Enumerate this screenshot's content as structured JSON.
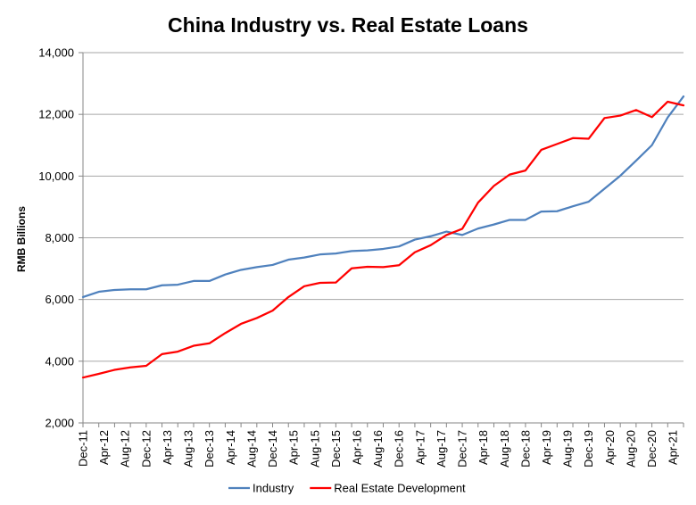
{
  "chart_data": {
    "type": "line",
    "title": "China Industry vs. Real Estate Loans",
    "xlabel": "",
    "ylabel": "RMB Billions",
    "ylim": [
      2000,
      14000
    ],
    "yticks": [
      "2,000",
      "4,000",
      "6,000",
      "8,000",
      "10,000",
      "12,000",
      "14,000"
    ],
    "grid": "horizontal",
    "legend_position": "bottom",
    "x": [
      "Dec-11",
      "Mar-12",
      "Jun-12",
      "Sep-12",
      "Dec-12",
      "Mar-13",
      "Jun-13",
      "Sep-13",
      "Dec-13",
      "Mar-14",
      "Jun-14",
      "Sep-14",
      "Dec-14",
      "Mar-15",
      "Jun-15",
      "Sep-15",
      "Dec-15",
      "Mar-16",
      "Jun-16",
      "Sep-16",
      "Dec-16",
      "Mar-17",
      "Jun-17",
      "Sep-17",
      "Dec-17",
      "Mar-18",
      "Jun-18",
      "Sep-18",
      "Dec-18",
      "Mar-19",
      "Jun-19",
      "Sep-19",
      "Dec-19",
      "Mar-20",
      "Jun-20",
      "Sep-20",
      "Dec-20",
      "Mar-21",
      "Jun-21"
    ],
    "x_tick_labels": [
      "Dec-11",
      "Apr-12",
      "Aug-12",
      "Dec-12",
      "Apr-13",
      "Aug-13",
      "Dec-13",
      "Apr-14",
      "Aug-14",
      "Dec-14",
      "Apr-15",
      "Aug-15",
      "Dec-15",
      "Apr-16",
      "Aug-16",
      "Dec-16",
      "Apr-17",
      "Aug-17",
      "Dec-17",
      "Apr-18",
      "Aug-18",
      "Dec-18",
      "Apr-19",
      "Aug-19",
      "Dec-19",
      "Apr-20",
      "Aug-20",
      "Dec-20",
      "Apr-21"
    ],
    "series": [
      {
        "name": "Industry",
        "color": "#4f81bd",
        "values": [
          6080,
          6250,
          6310,
          6330,
          6330,
          6460,
          6480,
          6600,
          6600,
          6810,
          6960,
          7050,
          7120,
          7290,
          7360,
          7460,
          7490,
          7570,
          7590,
          7640,
          7720,
          7940,
          8050,
          8200,
          8090,
          8300,
          8430,
          8580,
          8580,
          8850,
          8860,
          9020,
          9170,
          9590,
          10010,
          10500,
          11000,
          11900,
          12580
        ]
      },
      {
        "name": "Real Estate Development",
        "color": "#ff0000",
        "values": [
          3470,
          3590,
          3720,
          3800,
          3850,
          4230,
          4310,
          4500,
          4580,
          4910,
          5210,
          5400,
          5640,
          6080,
          6430,
          6540,
          6550,
          7010,
          7060,
          7050,
          7110,
          7530,
          7760,
          8090,
          8290,
          9140,
          9680,
          10050,
          10180,
          10850,
          11040,
          11230,
          11210,
          11880,
          11960,
          12140,
          11910,
          12410,
          12290
        ]
      }
    ]
  }
}
